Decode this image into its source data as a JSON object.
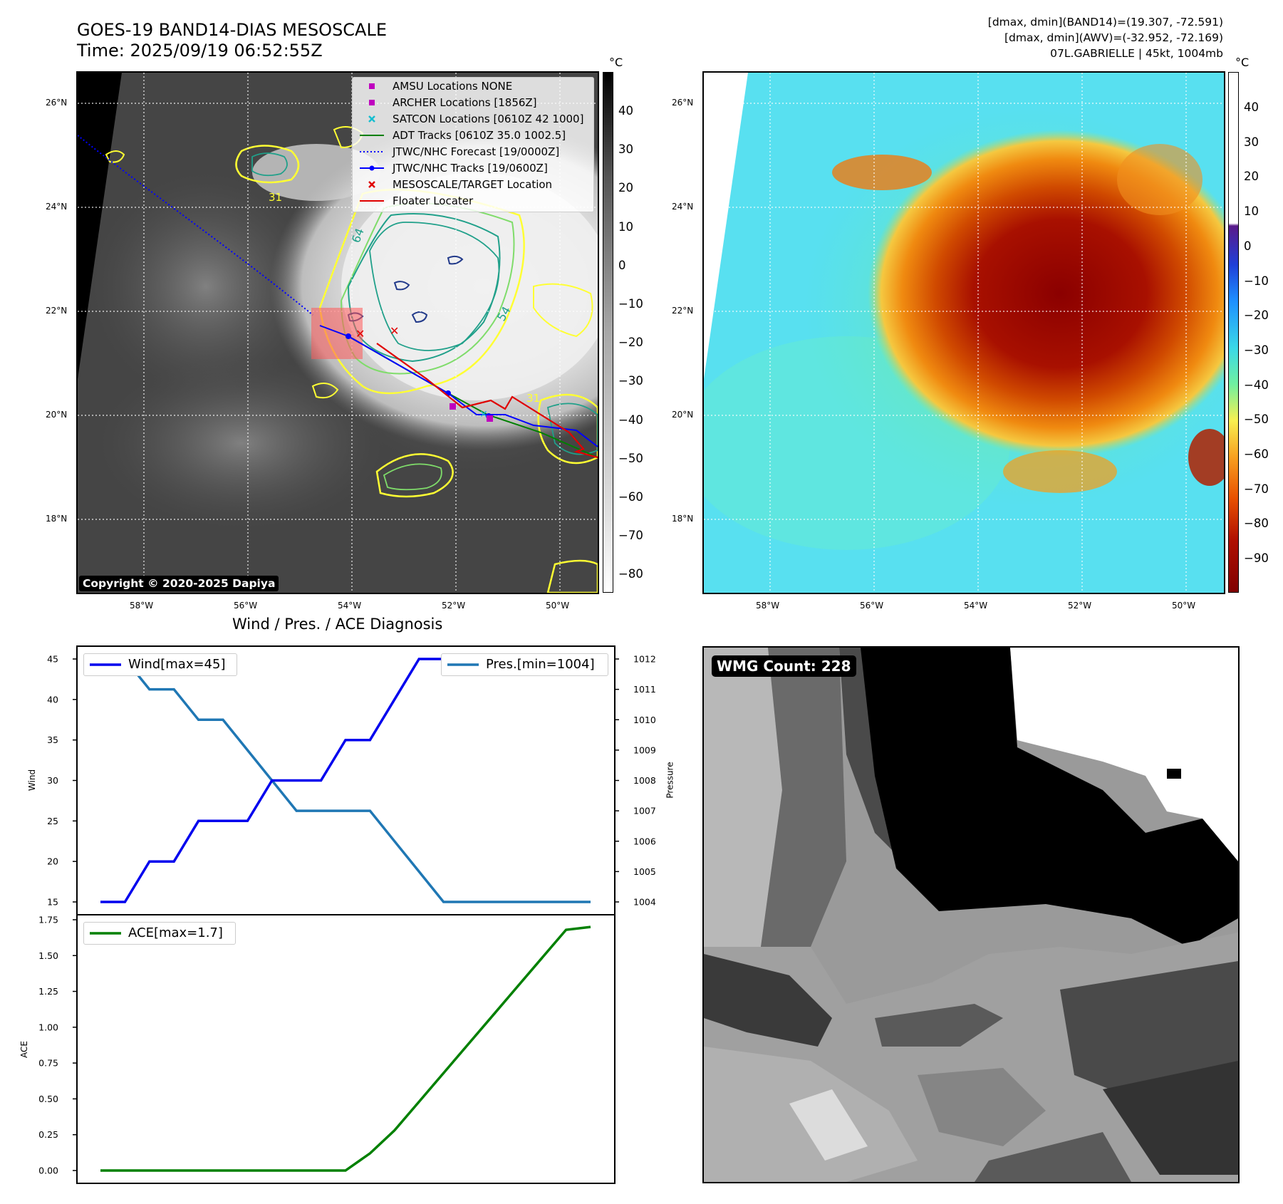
{
  "header": {
    "title_line1": "GOES-19 BAND14-DIAS MESOSCALE",
    "title_line2": "Time: 2025/09/19 06:52:55Z",
    "info_line1": "[dmax, dmin](BAND14)=(19.307, -72.591)",
    "info_line2": "[dmax, dmin](AWV)=(-32.952, -72.169)",
    "info_line3": "07L.GABRIELLE | 45kt, 1004mb"
  },
  "map": {
    "lat_labels": [
      "26°N",
      "24°N",
      "22°N",
      "20°N",
      "18°N"
    ],
    "lon_labels": [
      "58°W",
      "56°W",
      "54°W",
      "52°W",
      "50°W"
    ],
    "copyright": "Copyright © 2020-2025 Dapiya",
    "contour_labels": [
      "64",
      "54",
      "31",
      "31"
    ]
  },
  "legend": {
    "items": [
      {
        "label": "AMSU Locations NONE",
        "color": "#bf00bf",
        "symbol": "square"
      },
      {
        "label": "ARCHER Locations [1856Z]",
        "color": "#bf00bf",
        "symbol": "square"
      },
      {
        "label": "SATCON Locations [0610Z 42 1000]",
        "color": "#17becf",
        "symbol": "x"
      },
      {
        "label": "ADT Tracks [0610Z 35.0 1002.5]",
        "color": "#008000",
        "symbol": "line"
      },
      {
        "label": "JTWC/NHC Forecast [19/0000Z]",
        "color": "#0000ff",
        "symbol": "dotted"
      },
      {
        "label": "JTWC/NHC Tracks [19/0600Z]",
        "color": "#0000ff",
        "symbol": "line-dot"
      },
      {
        "label": "MESOSCALE/TARGET Location",
        "color": "#e00000",
        "symbol": "x"
      },
      {
        "label": "Floater Locater",
        "color": "#e00000",
        "symbol": "line"
      }
    ]
  },
  "colorbar_gray": {
    "unit": "°C",
    "ticks": [
      "40",
      "30",
      "20",
      "10",
      "0",
      "−10",
      "−20",
      "−30",
      "−40",
      "−50",
      "−60",
      "−70",
      "−80"
    ]
  },
  "colorbar_color": {
    "unit": "°C",
    "ticks": [
      "40",
      "30",
      "20",
      "10",
      "0",
      "−10",
      "−20",
      "−30",
      "−40",
      "−50",
      "−60",
      "−70",
      "−80",
      "−90"
    ]
  },
  "wmg": {
    "label": "WMG Count: 228"
  },
  "colors": {
    "wind": "#0000ee",
    "pressure": "#1f77b4",
    "ace": "#008000"
  },
  "chart_data": [
    {
      "type": "line",
      "title": "Wind / Pres. / ACE Diagnosis",
      "ylabel": "Wind",
      "y2label": "Pressure",
      "ylim": [
        15,
        45
      ],
      "y2lim": [
        1004,
        1012
      ],
      "yticks": [
        "45",
        "40",
        "35",
        "30",
        "25",
        "20",
        "15"
      ],
      "y2ticks": [
        "1012",
        "1011",
        "1010",
        "1009",
        "1008",
        "1007",
        "1006",
        "1005",
        "1004"
      ],
      "series": [
        {
          "name": "Wind[max=45]",
          "axis": "left",
          "values": [
            15,
            15,
            20,
            20,
            25,
            25,
            25,
            30,
            30,
            30,
            35,
            35,
            40,
            45,
            45,
            45,
            45,
            45,
            45,
            45,
            45
          ]
        },
        {
          "name": "Pres.[min=1004]",
          "axis": "right",
          "values": [
            1012,
            1012,
            1011,
            1011,
            1010,
            1010,
            1009,
            1008,
            1007,
            1007,
            1007,
            1007,
            1006,
            1005,
            1004,
            1004,
            1004,
            1004,
            1004,
            1004,
            1004
          ]
        }
      ]
    },
    {
      "type": "line",
      "title": "",
      "ylabel": "ACE",
      "ylim": [
        0,
        1.75
      ],
      "yticks": [
        "1.75",
        "1.50",
        "1.25",
        "1.00",
        "0.75",
        "0.50",
        "0.25",
        "0.00"
      ],
      "series": [
        {
          "name": "ACE[max=1.7]",
          "values": [
            0,
            0,
            0,
            0,
            0,
            0,
            0,
            0,
            0,
            0,
            0,
            0.12,
            0.28,
            0.48,
            0.68,
            0.88,
            1.08,
            1.28,
            1.48,
            1.68,
            1.7
          ]
        }
      ]
    }
  ]
}
